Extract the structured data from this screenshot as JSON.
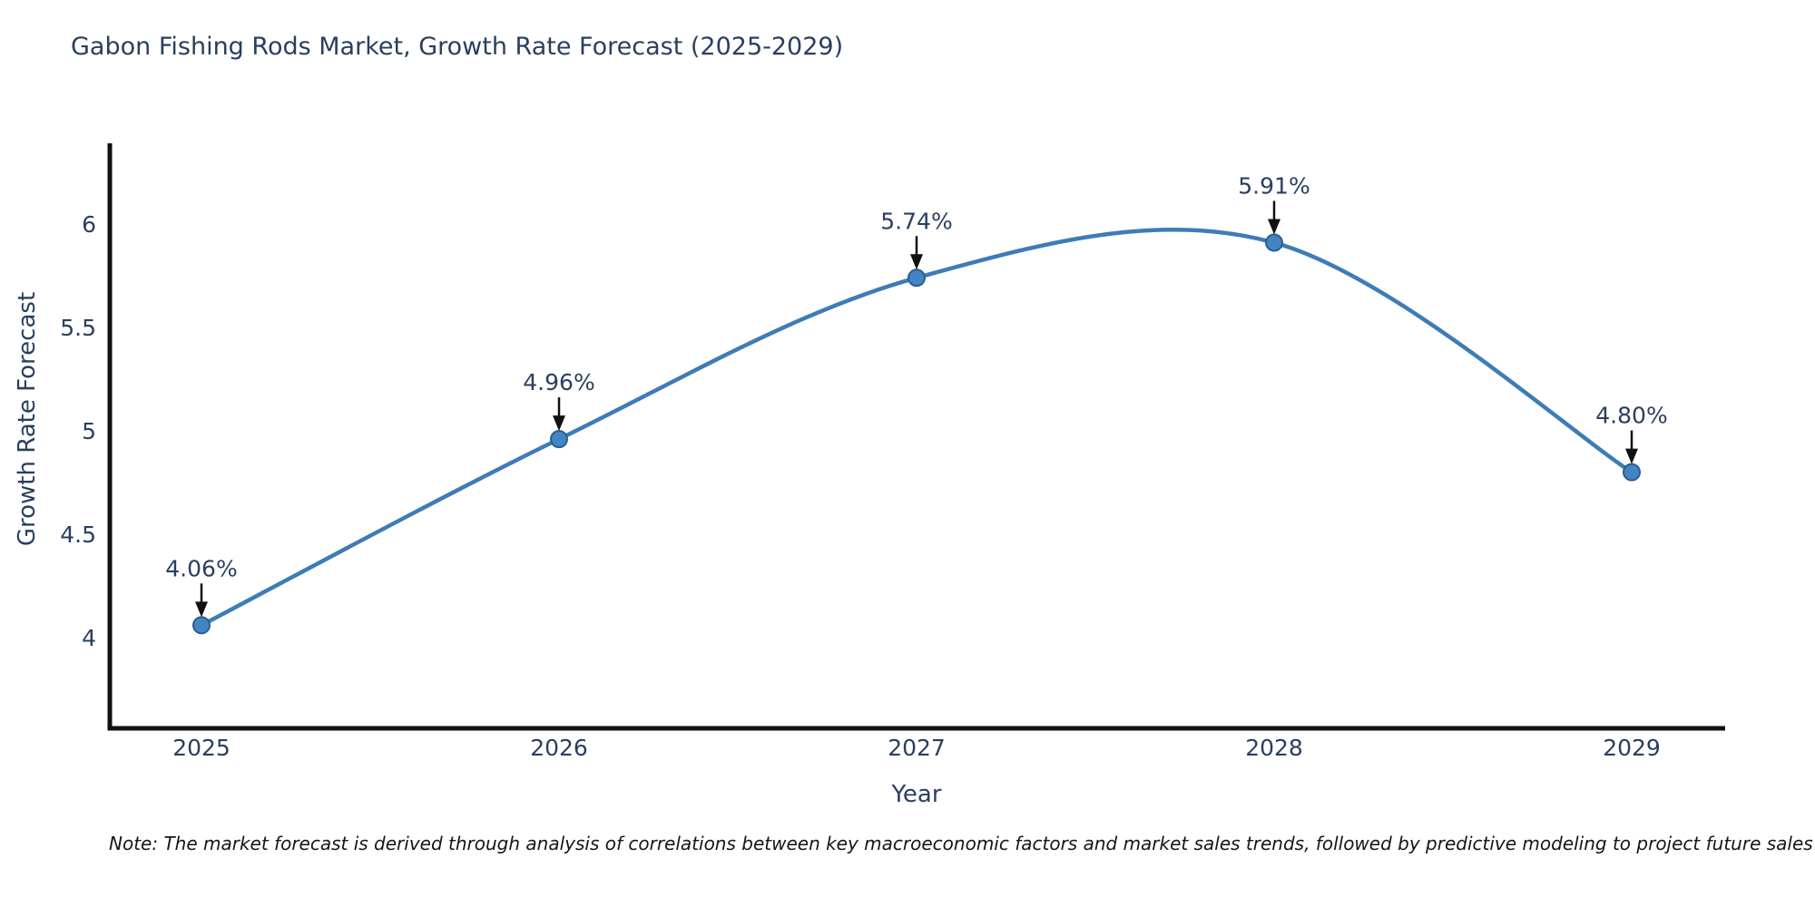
{
  "title": "Gabon Fishing Rods Market, Growth Rate Forecast (2025-2029)",
  "note": "Note: The market forecast is derived through analysis of correlations between key macroeconomic factors and market sales trends, followed by predictive modeling to project future sales",
  "chart_data": {
    "type": "line",
    "line_shape": "spline",
    "title": "Gabon Fishing Rods Market, Growth Rate Forecast (2025-2029)",
    "xlabel": "Year",
    "ylabel": "Growth Rate Forecast",
    "x": [
      2025,
      2026,
      2027,
      2028,
      2029
    ],
    "values": [
      4.06,
      4.96,
      5.74,
      5.91,
      4.8
    ],
    "point_labels": [
      "4.06%",
      "4.96%",
      "5.74%",
      "5.91%",
      "4.80%"
    ],
    "x_tick_labels": [
      "2025",
      "2026",
      "2027",
      "2028",
      "2029"
    ],
    "y_tick_labels": [
      "4",
      "4.5",
      "5",
      "5.5",
      "6"
    ],
    "y_tick_values": [
      4,
      4.5,
      5,
      5.5,
      6
    ],
    "xlim": [
      2024.73,
      2029.26
    ],
    "ylim": [
      3.55,
      6.38
    ],
    "grid": false,
    "legend": "none",
    "colors": {
      "line": "#3e7cb6",
      "marker_fill": "#4285c2",
      "marker_edge": "#2a5f8f",
      "axis_line": "#111111",
      "tick_text": "#2a3f5f",
      "title_text": "#2a3f5f",
      "annotation_text": "#2a3f5f",
      "annotation_arrow": "#111111"
    }
  }
}
